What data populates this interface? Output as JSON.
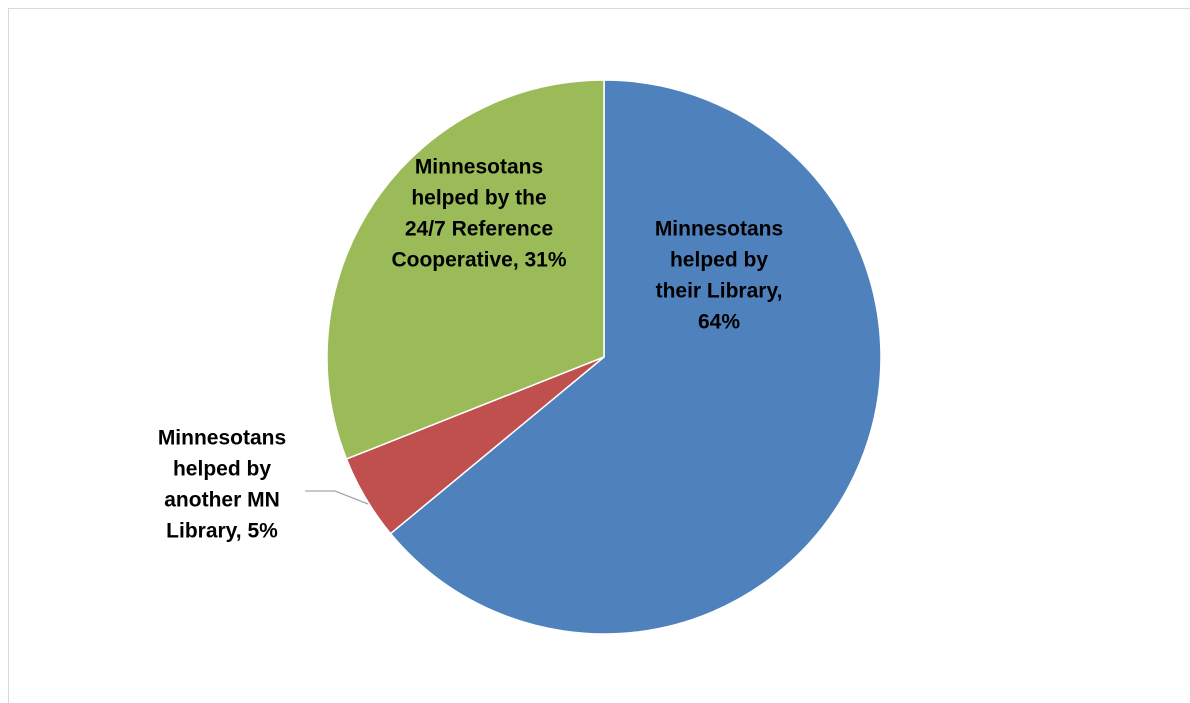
{
  "chart_data": {
    "type": "pie",
    "title": "",
    "categories": [
      "Minnesotans helped by their Library",
      "Minnesotans helped by another MN Library",
      "Minnesotans helped by the 24/7 Reference Cooperative"
    ],
    "values": [
      64,
      5,
      31
    ],
    "unit": "%",
    "colors": [
      "#4f81bd",
      "#c0504d",
      "#9bbb59"
    ],
    "labels": [
      [
        "Minnesotans",
        "helped by",
        "their Library,",
        "64%"
      ],
      [
        "Minnesotans",
        "helped by",
        "another MN",
        "Library, 5%"
      ],
      [
        "Minnesotans",
        "helped by the",
        "24/7 Reference",
        "Cooperative, 31%"
      ]
    ],
    "legend": "none",
    "start_angle": "12 o'clock, clockwise"
  }
}
